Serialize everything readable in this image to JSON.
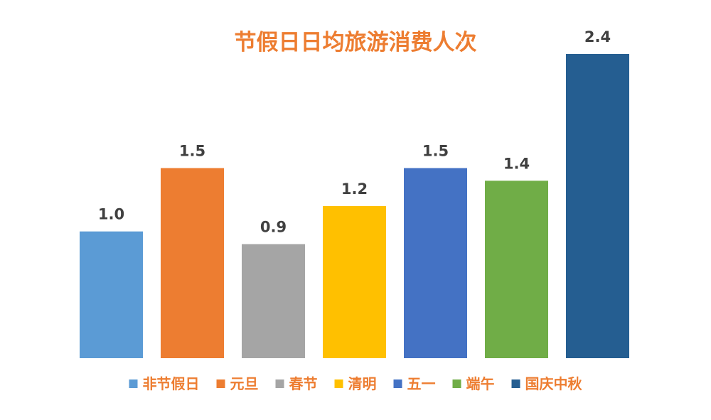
{
  "chart_data": {
    "type": "bar",
    "title": "节假日日均旅游消费人次",
    "categories": [
      "非节假日",
      "元旦",
      "春节",
      "清明",
      "五一",
      "端午",
      "国庆中秋"
    ],
    "values": [
      1.0,
      1.5,
      0.9,
      1.2,
      1.5,
      1.4,
      2.4
    ],
    "value_labels": [
      "1.0",
      "1.5",
      "0.9",
      "1.2",
      "1.5",
      "1.4",
      "2.4"
    ],
    "colors": [
      "#5b9bd5",
      "#ed7d31",
      "#a5a5a5",
      "#ffc000",
      "#4472c4",
      "#70ad47",
      "#255e91"
    ],
    "xlabel": "",
    "ylabel": "",
    "ylim": [
      0,
      2.4
    ],
    "grid": false,
    "legend_position": "bottom",
    "title_color": "#ed7d31",
    "legend_text_color": "#ed7d31",
    "data_label_color": "#404040"
  }
}
